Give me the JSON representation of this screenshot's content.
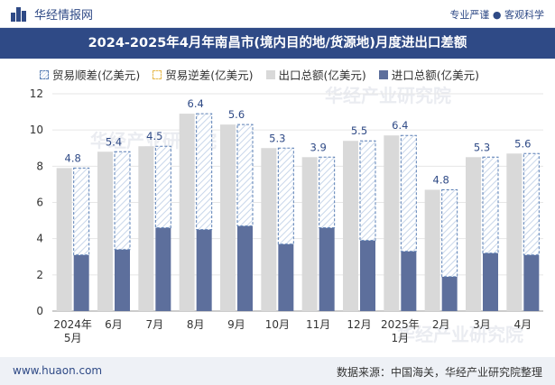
{
  "header": {
    "brand": "华经情报网",
    "right_text": "专业严谨 ● 客观科学"
  },
  "watermark": "华经产业研究院",
  "footer": {
    "website": "www.huaon.com",
    "source": "数据来源：中国海关，华经产业研究院整理"
  },
  "colors": {
    "title_bg": "#2f4a86",
    "export": "#d9d9d9",
    "import": "#5d6f9c",
    "surplus_border": "#5a7fb5",
    "deficit_border": "#e6b84a"
  },
  "chart_data": {
    "type": "bar",
    "title": "2024-2025年4月年南昌市(境内目的地/货源地)月度进出口差额",
    "categories": [
      "2024年\n5月",
      "6月",
      "7月",
      "8月",
      "9月",
      "10月",
      "11月",
      "12月",
      "2025年\n1月",
      "2月",
      "3月",
      "4月"
    ],
    "series": [
      {
        "name": "贸易顺差(亿美元)",
        "values": [
          4.8,
          5.4,
          4.5,
          6.4,
          5.6,
          5.3,
          3.9,
          5.5,
          6.4,
          4.8,
          5.3,
          5.6
        ]
      },
      {
        "name": "贸易逆差(亿美元)",
        "values": [
          0,
          0,
          0,
          0,
          0,
          0,
          0,
          0,
          0,
          0,
          0,
          0
        ]
      },
      {
        "name": "出口总额(亿美元)",
        "values": [
          7.9,
          8.8,
          9.1,
          10.9,
          10.3,
          9.0,
          8.5,
          9.4,
          9.7,
          6.7,
          8.5,
          8.7
        ]
      },
      {
        "name": "进口总额(亿美元)",
        "values": [
          3.1,
          3.4,
          4.6,
          4.5,
          4.7,
          3.7,
          4.6,
          3.9,
          3.3,
          1.9,
          3.2,
          3.1
        ]
      }
    ],
    "y_ticks": [
      "0",
      "2",
      "4",
      "6",
      "8",
      "10",
      "12"
    ],
    "ylim": [
      0,
      12
    ],
    "grid": true,
    "legend": "top-left"
  }
}
